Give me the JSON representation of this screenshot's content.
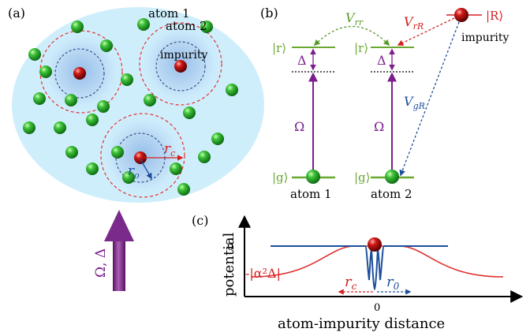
{
  "panel_a": {
    "label": "(a)",
    "atom1_label": "atom 1",
    "atom2_label": "atom 2",
    "impurity_label": "impurity",
    "rc_label": "r",
    "rc_sub": "c",
    "ro_label": "r",
    "ro_sub": "o",
    "arrow_label": "Ω,  Δ",
    "colors": {
      "cloud": "#cfeefc",
      "ground_atom": "#1fa81f",
      "impurity": "#c81010",
      "blockade": "#e53030",
      "inner": "#1c3a78"
    }
  },
  "panel_b": {
    "label": "(b)",
    "r_state": "|r⟩",
    "g_state": "|g⟩",
    "R_state": "|R⟩",
    "delta": "Δ",
    "omega": "Ω",
    "v_rr": "V",
    "v_rr_sub": "rr",
    "v_rR": "V",
    "v_rR_sub": "rR",
    "v_gR": "V",
    "v_gR_sub": "gR",
    "atom1_label": "atom 1",
    "atom2_label": "atom 2",
    "impurity_label": "impurity",
    "colors": {
      "level": "#6aa832",
      "laser": "#7a1e8c",
      "vrr": "#5a9a2a",
      "vrR": "#d42020",
      "vgR": "#1d4f9c"
    }
  },
  "panel_c": {
    "label": "(c)",
    "y_axis_label": "potential",
    "x_axis_label": "atom-impurity distance",
    "zero_tick": "0",
    "x_zero_tick": "0",
    "depth_label": "-|α²Δ|",
    "rc_label": "r",
    "rc_sub": "c",
    "r0_label": "r",
    "r0_sub": "0",
    "colors": {
      "dressed": "#e03030",
      "bare": "#1d4f9c"
    }
  }
}
